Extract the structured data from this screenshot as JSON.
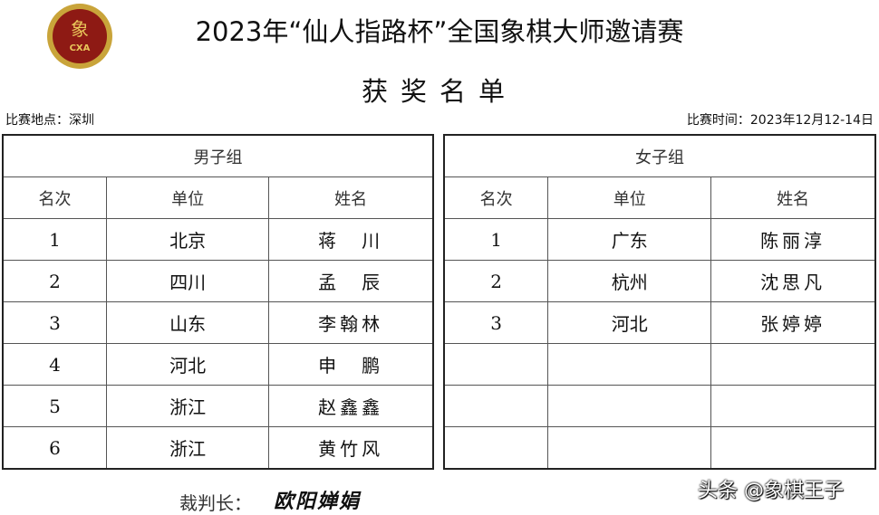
{
  "header": {
    "logo_text": "CXA",
    "logo_char": "象",
    "title": "2023年“仙人指路杯”全国象棋大师邀请赛",
    "subtitle": "获奖名单",
    "venue": "比赛地点：深圳",
    "date": "比赛时间：2023年12月12-14日"
  },
  "men": {
    "group_label": "男子组",
    "columns": [
      "名次",
      "单位",
      "姓名"
    ],
    "rows": [
      [
        "1",
        "北京",
        "蒋　川"
      ],
      [
        "2",
        "四川",
        "孟　辰"
      ],
      [
        "3",
        "山东",
        "李翰林"
      ],
      [
        "4",
        "河北",
        "申　鹏"
      ],
      [
        "5",
        "浙江",
        "赵鑫鑫"
      ],
      [
        "6",
        "浙江",
        "黄竹风"
      ]
    ]
  },
  "women": {
    "group_label": "女子组",
    "columns": [
      "名次",
      "单位",
      "姓名"
    ],
    "rows": [
      [
        "1",
        "广东",
        "陈丽淳"
      ],
      [
        "2",
        "杭州",
        "沈思凡"
      ],
      [
        "3",
        "河北",
        "张婷婷"
      ],
      [
        "",
        "",
        ""
      ],
      [
        "",
        "",
        ""
      ],
      [
        "",
        "",
        ""
      ]
    ]
  },
  "footer": {
    "referee_label": "裁判长：",
    "referee_name": "欧阳婵娟",
    "watermark": "头条 @象棋王子"
  }
}
